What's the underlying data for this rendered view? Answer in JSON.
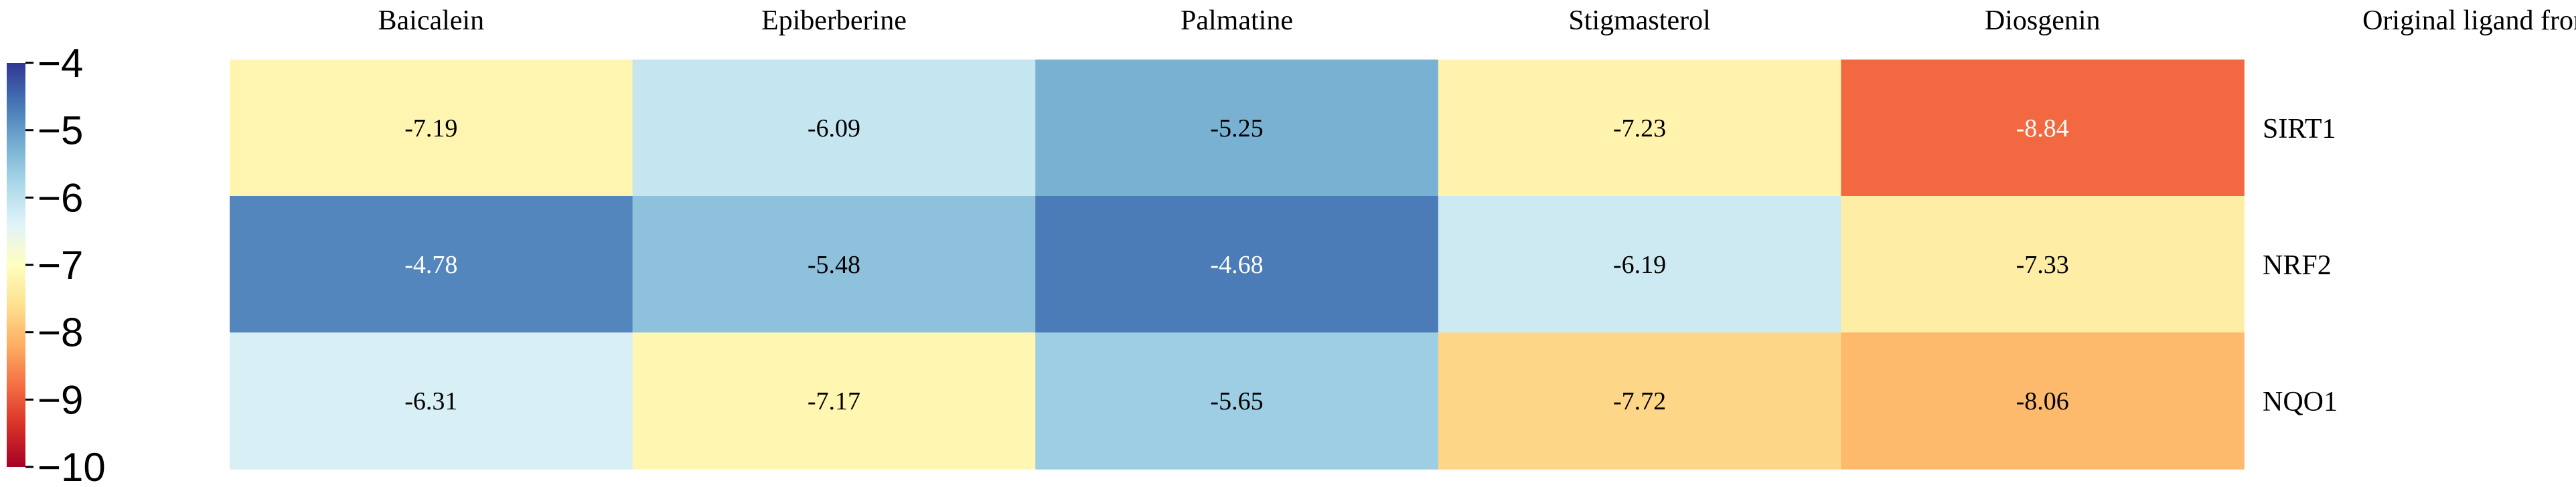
{
  "chart_data": {
    "type": "heatmap",
    "columns": [
      "Baicalein",
      "Epiberberine",
      "Palmatine",
      "Stigmasterol",
      "Diosgenin"
    ],
    "extra_column_header": "Original ligand from PDB",
    "rows": [
      "SIRT1",
      "NRF2",
      "NQO1"
    ],
    "values": [
      [
        -7.19,
        -6.09,
        -5.25,
        -7.23,
        -8.84
      ],
      [
        -4.78,
        -5.48,
        -4.68,
        -6.19,
        -7.33
      ],
      [
        -6.31,
        -7.17,
        -5.65,
        -7.72,
        -8.06
      ]
    ],
    "value_labels": [
      [
        "-7.19",
        "-6.09",
        "-5.25",
        "-7.23",
        "-8.84"
      ],
      [
        "-4.78",
        "-5.48",
        "-4.68",
        "-6.19",
        "-7.33"
      ],
      [
        "-6.31",
        "-7.17",
        "-5.65",
        "-7.72",
        "-8.06"
      ]
    ],
    "colorbar": {
      "min": -10,
      "max": -4,
      "ticks": [
        -4,
        -5,
        -6,
        -7,
        -8,
        -9,
        -10
      ],
      "tick_labels": [
        "−4",
        "−5",
        "−6",
        "−7",
        "−8",
        "−9",
        "−10"
      ],
      "colormap": "RdYlBu",
      "stops": [
        "#a50026",
        "#d73027",
        "#f46d43",
        "#fdae61",
        "#fee090",
        "#ffffbf",
        "#e0f3f8",
        "#abd9e9",
        "#74add1",
        "#4575b4",
        "#313695"
      ]
    }
  }
}
